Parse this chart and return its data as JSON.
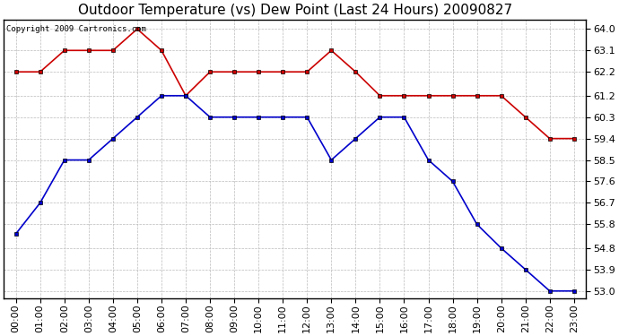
{
  "title": "Outdoor Temperature (vs) Dew Point (Last 24 Hours) 20090827",
  "copyright_text": "Copyright 2009 Cartronics.com",
  "x_labels": [
    "00:00",
    "01:00",
    "02:00",
    "03:00",
    "04:00",
    "05:00",
    "06:00",
    "07:00",
    "08:00",
    "09:00",
    "10:00",
    "11:00",
    "12:00",
    "13:00",
    "14:00",
    "15:00",
    "16:00",
    "17:00",
    "18:00",
    "19:00",
    "20:00",
    "21:00",
    "22:00",
    "23:00"
  ],
  "temp_data": [
    62.2,
    62.2,
    63.1,
    63.1,
    63.1,
    64.0,
    63.1,
    61.2,
    62.2,
    62.2,
    62.2,
    62.2,
    62.2,
    63.1,
    62.2,
    61.2,
    61.2,
    61.2,
    61.2,
    61.2,
    61.2,
    60.3,
    59.4,
    59.4
  ],
  "dew_data": [
    55.4,
    56.7,
    58.5,
    58.5,
    59.4,
    60.3,
    61.2,
    61.2,
    60.3,
    60.3,
    60.3,
    60.3,
    60.3,
    58.5,
    59.4,
    60.3,
    60.3,
    58.5,
    57.6,
    55.8,
    54.8,
    53.9,
    53.0,
    53.0
  ],
  "temp_color": "#cc0000",
  "dew_color": "#0000cc",
  "bg_color": "#ffffff",
  "grid_color": "#bbbbbb",
  "ylim_min": 52.7,
  "ylim_max": 64.4,
  "yticks": [
    53.0,
    53.9,
    54.8,
    55.8,
    56.7,
    57.6,
    58.5,
    59.4,
    60.3,
    61.2,
    62.2,
    63.1,
    64.0
  ],
  "title_fontsize": 11,
  "tick_fontsize": 8,
  "copyright_fontsize": 6.5,
  "fig_width": 6.9,
  "fig_height": 3.75,
  "dpi": 100
}
